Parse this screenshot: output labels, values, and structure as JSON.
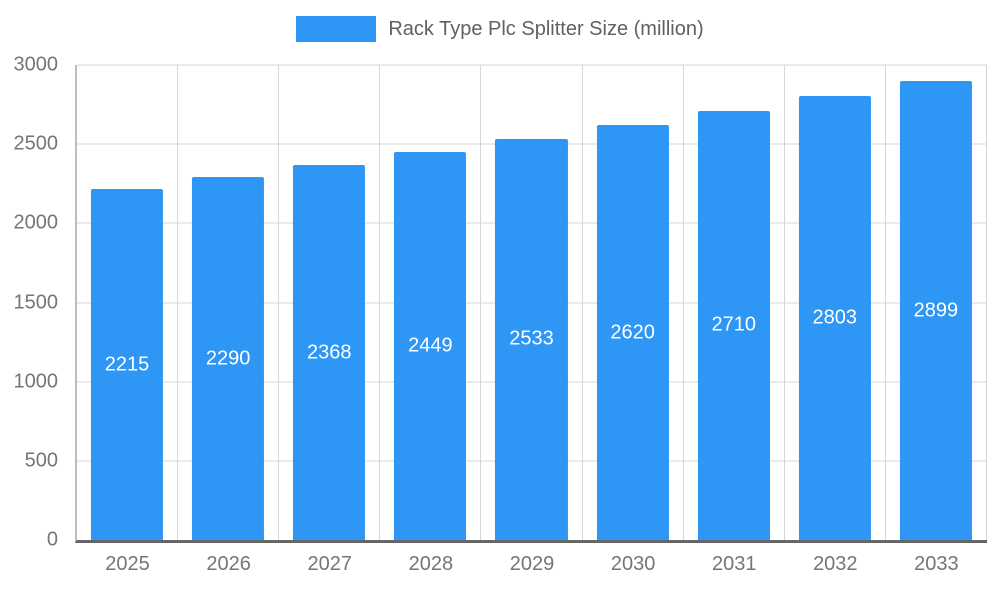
{
  "chart_data": {
    "type": "bar",
    "title": "Rack Type Plc Splitter Size (million)",
    "categories": [
      "2025",
      "2026",
      "2027",
      "2028",
      "2029",
      "2030",
      "2031",
      "2032",
      "2033"
    ],
    "values": [
      2215,
      2290,
      2368,
      2449,
      2533,
      2620,
      2710,
      2803,
      2899
    ],
    "xlabel": "",
    "ylabel": "",
    "ylim": [
      0,
      3000
    ],
    "ytick_step": 500,
    "grid": true,
    "legend_position": "top",
    "bar_color": "#2E96F5",
    "value_label_color": "#ffffff"
  },
  "colors": {
    "background": "#ffffff",
    "gridline": "#d6d6d6",
    "axis_bottom": "#666666",
    "axis_left": "#bdbdbd",
    "tick_text": "#757575",
    "title_text": "#616161"
  }
}
